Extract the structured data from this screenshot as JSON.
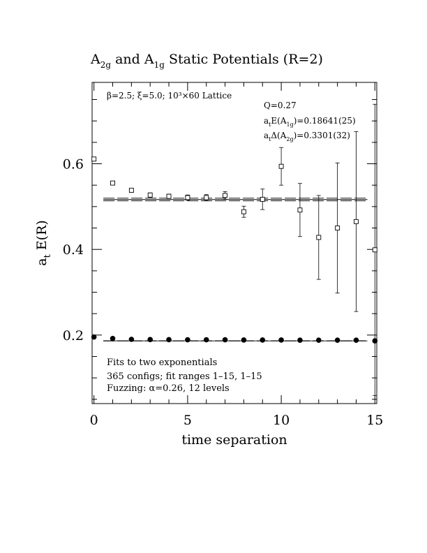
{
  "chart_data": {
    "type": "scatter",
    "title": {
      "base": "A",
      "sub1": "2g",
      "mid": " and A",
      "sub2": "1g",
      "tail": " Static Potentials (R=2)"
    },
    "xlabel": "time separation",
    "ylabel": {
      "main": "a",
      "sub": "t",
      "tail": " E(R)"
    },
    "xlim": [
      -0.1,
      15.1
    ],
    "ylim": [
      0.04,
      0.79
    ],
    "xticks": [
      0,
      5,
      10,
      15
    ],
    "xtick_labels": [
      "0",
      "5",
      "10",
      "15"
    ],
    "yticks": [
      0.2,
      0.4,
      0.6
    ],
    "ytick_labels": [
      "0.2",
      "0.4",
      "0.6"
    ],
    "grid": false,
    "annotations": {
      "lattice": "β=2.5; ξ=5.0; 10³×60 Lattice",
      "q": "Q=0.27",
      "ea1g": {
        "pre": "a",
        "s1": "t",
        "mid": "E(A",
        "s2": "1g",
        "tail": ")=0.18641(25)"
      },
      "da2g": {
        "pre": "a",
        "s1": "t",
        "mid": "Δ(A",
        "s2": "2g",
        "tail": ")=0.3301(32)"
      },
      "fits": "Fits to two exponentials",
      "configs": "365 configs; fit ranges 1–15, 1–15",
      "fuzzing": "Fuzzing: α=0.26, 12 levels"
    },
    "series": [
      {
        "marker": "open-square",
        "x": [
          0,
          1,
          2,
          3,
          4,
          5,
          6,
          7,
          8,
          9,
          10,
          11,
          12,
          13,
          14,
          15
        ],
        "y": [
          0.611,
          0.555,
          0.538,
          0.527,
          0.524,
          0.521,
          0.521,
          0.526,
          0.488,
          0.517,
          0.594,
          0.492,
          0.428,
          0.45,
          0.465,
          0.399
        ],
        "err": [
          0.003,
          0.004,
          0.004,
          0.005,
          0.005,
          0.006,
          0.007,
          0.009,
          0.013,
          0.024,
          0.044,
          0.062,
          0.098,
          0.152,
          0.21,
          0.34
        ]
      },
      {
        "marker": "filled-circle",
        "x": [
          0,
          1,
          2,
          3,
          4,
          5,
          6,
          7,
          8,
          9,
          10,
          11,
          12,
          13,
          14,
          15
        ],
        "y": [
          0.1955,
          0.192,
          0.19,
          0.1895,
          0.1893,
          0.189,
          0.189,
          0.189,
          0.1885,
          0.1885,
          0.1884,
          0.188,
          0.188,
          0.188,
          0.188,
          0.1865
        ],
        "err": [
          0.0,
          0.0,
          0.0,
          0.0,
          0.0,
          0.0,
          0.0,
          0.0,
          0.0,
          0.0,
          0.0,
          0.0,
          0.0,
          0.0,
          0.0,
          0.0
        ]
      }
    ],
    "fit_lines": [
      {
        "y": 0.5165,
        "band": 0.0032,
        "x_range": [
          0.5,
          14.6
        ]
      },
      {
        "y": 0.18641,
        "band": 0.00025,
        "x_range": [
          0.5,
          14.6
        ]
      }
    ]
  }
}
